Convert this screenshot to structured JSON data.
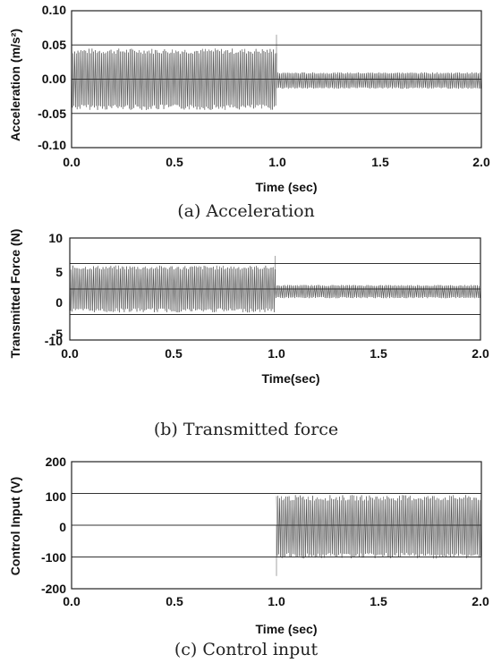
{
  "chart_data": [
    {
      "type": "line",
      "caption": "(a) Acceleration",
      "xlabel": "Time (sec)",
      "ylabel": "Acceleration (m/s²)",
      "xlim": [
        0.0,
        2.0
      ],
      "ylim": [
        -0.1,
        0.1
      ],
      "x_ticks": [
        "0.0",
        "0.5",
        "1.0",
        "1.5",
        "2.0"
      ],
      "y_ticks": [
        "0.10",
        "0.05",
        "0.00",
        "-0.05",
        "-0.10"
      ],
      "y_tick_values": [
        0.1,
        0.05,
        0.0,
        -0.05,
        -0.1
      ],
      "grid_lines_y": [
        0.05,
        0.0,
        -0.05
      ],
      "signal": {
        "segments": [
          {
            "x_range": [
              0.0,
              1.0
            ],
            "amplitude": 0.045,
            "offset": 0.0
          },
          {
            "x_range": [
              1.0,
              2.0
            ],
            "amplitude": 0.012,
            "offset": -0.002
          }
        ],
        "spike": {
          "x": 1.0,
          "y": 0.065
        }
      }
    },
    {
      "type": "line",
      "caption": "(b) Transmitted force",
      "xlabel": "Time(sec)",
      "ylabel": "Transmitted Force (N)",
      "xlim": [
        0.0,
        2.0
      ],
      "ylim": [
        -10,
        10
      ],
      "x_ticks": [
        "0.0",
        "0.5",
        "1.0",
        "1.5",
        "2.0"
      ],
      "y_ticks": [
        "10",
        "5",
        "0",
        "-5",
        "-10"
      ],
      "y_tick_values": [
        10,
        5,
        0,
        -5,
        -10
      ],
      "grid_lines_y": [
        5,
        0,
        -5
      ],
      "signal": {
        "segments": [
          {
            "x_range": [
              0.0,
              1.0
            ],
            "amplitude": 4.6,
            "offset": 0.0
          },
          {
            "x_range": [
              1.0,
              2.0
            ],
            "amplitude": 1.3,
            "offset": -0.5
          }
        ],
        "spike": {
          "x": 1.0,
          "y": 6.5
        }
      }
    },
    {
      "type": "line",
      "caption": "(c) Control input",
      "xlabel": "Time (sec)",
      "ylabel": "Control Input (V)",
      "xlim": [
        0.0,
        2.0
      ],
      "ylim": [
        -200,
        200
      ],
      "x_ticks": [
        "0.0",
        "0.5",
        "1.0",
        "1.5",
        "2.0"
      ],
      "y_ticks": [
        "200",
        "100",
        "0",
        "-100",
        "-200"
      ],
      "y_tick_values": [
        200,
        100,
        0,
        -100,
        -200
      ],
      "grid_lines_y": [
        100,
        0,
        -100
      ],
      "signal": {
        "segments": [
          {
            "x_range": [
              1.0,
              2.0
            ],
            "amplitude": 100,
            "offset": -5
          }
        ],
        "spike": {
          "x": 1.0,
          "y": -160
        }
      }
    }
  ]
}
